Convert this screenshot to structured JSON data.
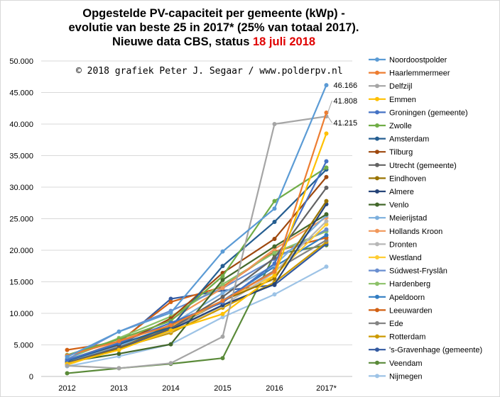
{
  "title": {
    "line1": "Opgestelde PV-capaciteit per gemeente (kWp) -",
    "line2": "evolutie van beste 25 in 2017* (25% van totaal 2017).",
    "line3_prefix": "Nieuwe data CBS, status",
    "line3_date": "18 juli  2018"
  },
  "copyright": "© 2018 grafiek Peter J. Segaar / www.polderpv.nl",
  "colors": {
    "title_date": "#e00000",
    "gridline": "#d9d9d9"
  },
  "chart_data": {
    "type": "line",
    "x": [
      "2012",
      "2013",
      "2014",
      "2015",
      "2016",
      "2017*"
    ],
    "ylim": [
      0,
      50000
    ],
    "yticks": [
      "0",
      "5.000",
      "10.000",
      "15.000",
      "20.000",
      "25.000",
      "30.000",
      "35.000",
      "40.000",
      "45.000",
      "50.000"
    ],
    "grid": true,
    "legend_position": "right",
    "annotations": [
      {
        "text": "46.166",
        "series": "Noordoostpolder"
      },
      {
        "text": "41.808",
        "series": "Haarlemmermeer"
      },
      {
        "text": "41.215",
        "series": "Delfzijl"
      }
    ],
    "series": [
      {
        "name": "Noordoostpolder",
        "color": "#5b9bd5",
        "values": [
          3100,
          7100,
          10100,
          19800,
          26600,
          46166
        ]
      },
      {
        "name": "Haarlemmermeer",
        "color": "#ed7d31",
        "values": [
          3300,
          5600,
          8100,
          12000,
          16600,
          41808
        ]
      },
      {
        "name": "Delfzijl",
        "color": "#a5a5a5",
        "values": [
          1700,
          1300,
          2100,
          6300,
          40000,
          41215
        ]
      },
      {
        "name": "Emmen",
        "color": "#ffc000",
        "values": [
          2000,
          4200,
          7300,
          9900,
          16000,
          38500
        ]
      },
      {
        "name": "Groningen (gemeente)",
        "color": "#4472c4",
        "values": [
          2600,
          5300,
          8500,
          11700,
          17900,
          34100
        ]
      },
      {
        "name": "Zwolle",
        "color": "#70ad47",
        "values": [
          3400,
          5900,
          8800,
          15900,
          27800,
          33100
        ]
      },
      {
        "name": "Amsterdam",
        "color": "#255e91",
        "values": [
          2500,
          5100,
          7800,
          17500,
          24500,
          32800
        ]
      },
      {
        "name": "Tilburg",
        "color": "#9e480e",
        "values": [
          2600,
          5000,
          9200,
          16400,
          21800,
          31600
        ]
      },
      {
        "name": "Utrecht (gemeente)",
        "color": "#636363",
        "values": [
          2200,
          4600,
          7600,
          12600,
          18800,
          29900
        ]
      },
      {
        "name": "Eindhoven",
        "color": "#997300",
        "values": [
          2000,
          4400,
          8200,
          12000,
          15500,
          27800
        ]
      },
      {
        "name": "Almere",
        "color": "#264478",
        "values": [
          2000,
          4300,
          7400,
          11300,
          14600,
          27300
        ]
      },
      {
        "name": "Venlo",
        "color": "#43682b",
        "values": [
          2300,
          3600,
          5100,
          15300,
          20600,
          25700
        ]
      },
      {
        "name": "Meierijstad",
        "color": "#7cafdd",
        "values": [
          2200,
          4800,
          8200,
          13200,
          17600,
          25500
        ]
      },
      {
        "name": "Hollands Kroon",
        "color": "#f1975a",
        "values": [
          2500,
          5500,
          9000,
          14000,
          20200,
          25200
        ]
      },
      {
        "name": "Dronten",
        "color": "#b7b7b7",
        "values": [
          2000,
          4400,
          7200,
          11200,
          16500,
          24600
        ]
      },
      {
        "name": "Westland",
        "color": "#ffcd33",
        "values": [
          1800,
          4600,
          7900,
          11900,
          16000,
          24100
        ]
      },
      {
        "name": "Súdwest-Fryslân",
        "color": "#698ed0",
        "values": [
          2700,
          7100,
          10400,
          14000,
          18600,
          23300
        ]
      },
      {
        "name": "Hardenberg",
        "color": "#8cc168",
        "values": [
          2800,
          6100,
          9500,
          14600,
          19600,
          23000
        ]
      },
      {
        "name": "Apeldoorn",
        "color": "#327dc2",
        "values": [
          2300,
          5000,
          7800,
          12000,
          17400,
          22400
        ]
      },
      {
        "name": "Leeuwarden",
        "color": "#d26012",
        "values": [
          4200,
          5500,
          11800,
          14200,
          19800,
          22000
        ]
      },
      {
        "name": "Ede",
        "color": "#848484",
        "values": [
          2200,
          4700,
          7600,
          11900,
          16800,
          21600
        ]
      },
      {
        "name": "Rotterdam",
        "color": "#cc9a00",
        "values": [
          1900,
          4500,
          6900,
          10900,
          14900,
          21300
        ]
      },
      {
        "name": "'s-Gravenhage (gemeente)",
        "color": "#335aa1",
        "values": [
          2600,
          5300,
          12300,
          13600,
          14500,
          21000
        ]
      },
      {
        "name": "Veendam",
        "color": "#5a8a39",
        "values": [
          500,
          1300,
          2000,
          2900,
          19300,
          20800
        ]
      },
      {
        "name": "Nijmegen",
        "color": "#9dc3e6",
        "values": [
          1600,
          3200,
          5100,
          9400,
          13000,
          17400
        ]
      }
    ]
  }
}
